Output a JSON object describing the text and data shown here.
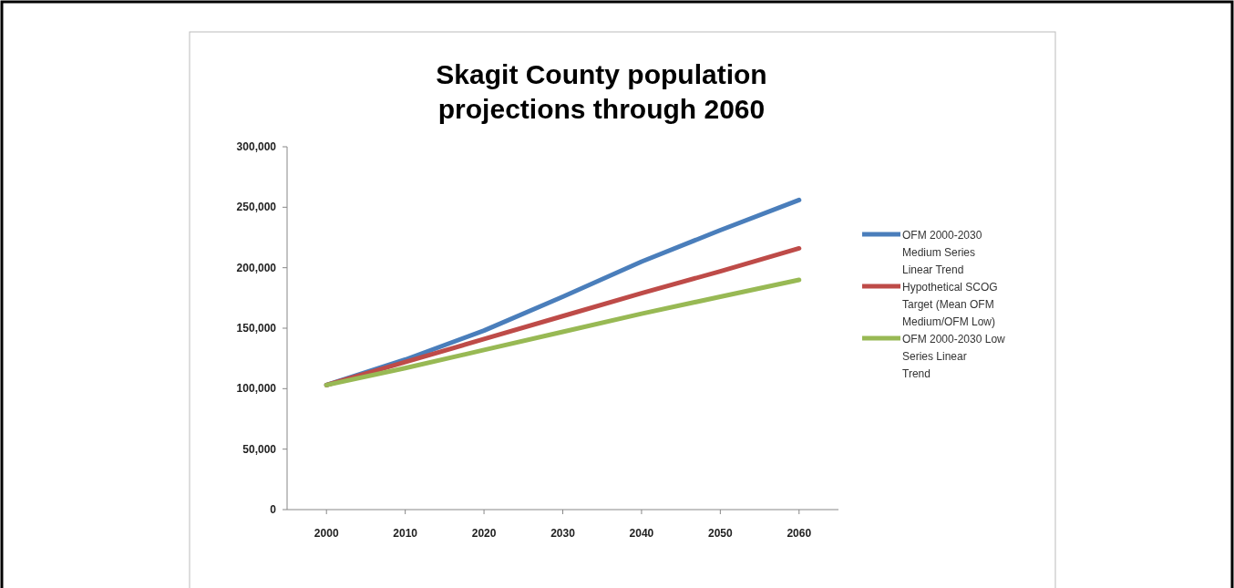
{
  "chart_data": {
    "type": "line",
    "title": "Skagit County population projections through 2060",
    "x": [
      2000,
      2010,
      2020,
      2030,
      2040,
      2050,
      2060
    ],
    "xlim": [
      1995,
      2065
    ],
    "xticks": [
      2000,
      2010,
      2020,
      2030,
      2040,
      2050,
      2060
    ],
    "ylim": [
      0,
      300000
    ],
    "yticks": [
      {
        "value": 0,
        "label": "0"
      },
      {
        "value": 50000,
        "label": "50,000"
      },
      {
        "value": 100000,
        "label": "100,000"
      },
      {
        "value": 150000,
        "label": "150,000"
      },
      {
        "value": 200000,
        "label": "200,000"
      },
      {
        "value": 250000,
        "label": "250,000"
      },
      {
        "value": 300000,
        "label": "300,000"
      }
    ],
    "series": [
      {
        "name": "OFM 2000-2030 Medium Series Linear Trend",
        "color": "#4a7ebb",
        "values": [
          103000,
          124000,
          148000,
          176000,
          205000,
          231000,
          256000
        ]
      },
      {
        "name": "Hypothetical SCOG Target (Mean OFM Medium/OFM Low)",
        "color": "#be4b48",
        "values": [
          103000,
          122000,
          141000,
          160000,
          179000,
          197000,
          216000
        ]
      },
      {
        "name": "OFM 2000-2030 Low Series Linear Trend",
        "color": "#98b954",
        "values": [
          103000,
          117000,
          132000,
          147000,
          162000,
          176000,
          190000
        ]
      }
    ],
    "legend": "right",
    "grid": false,
    "marker": "none",
    "line_style": "solid"
  }
}
